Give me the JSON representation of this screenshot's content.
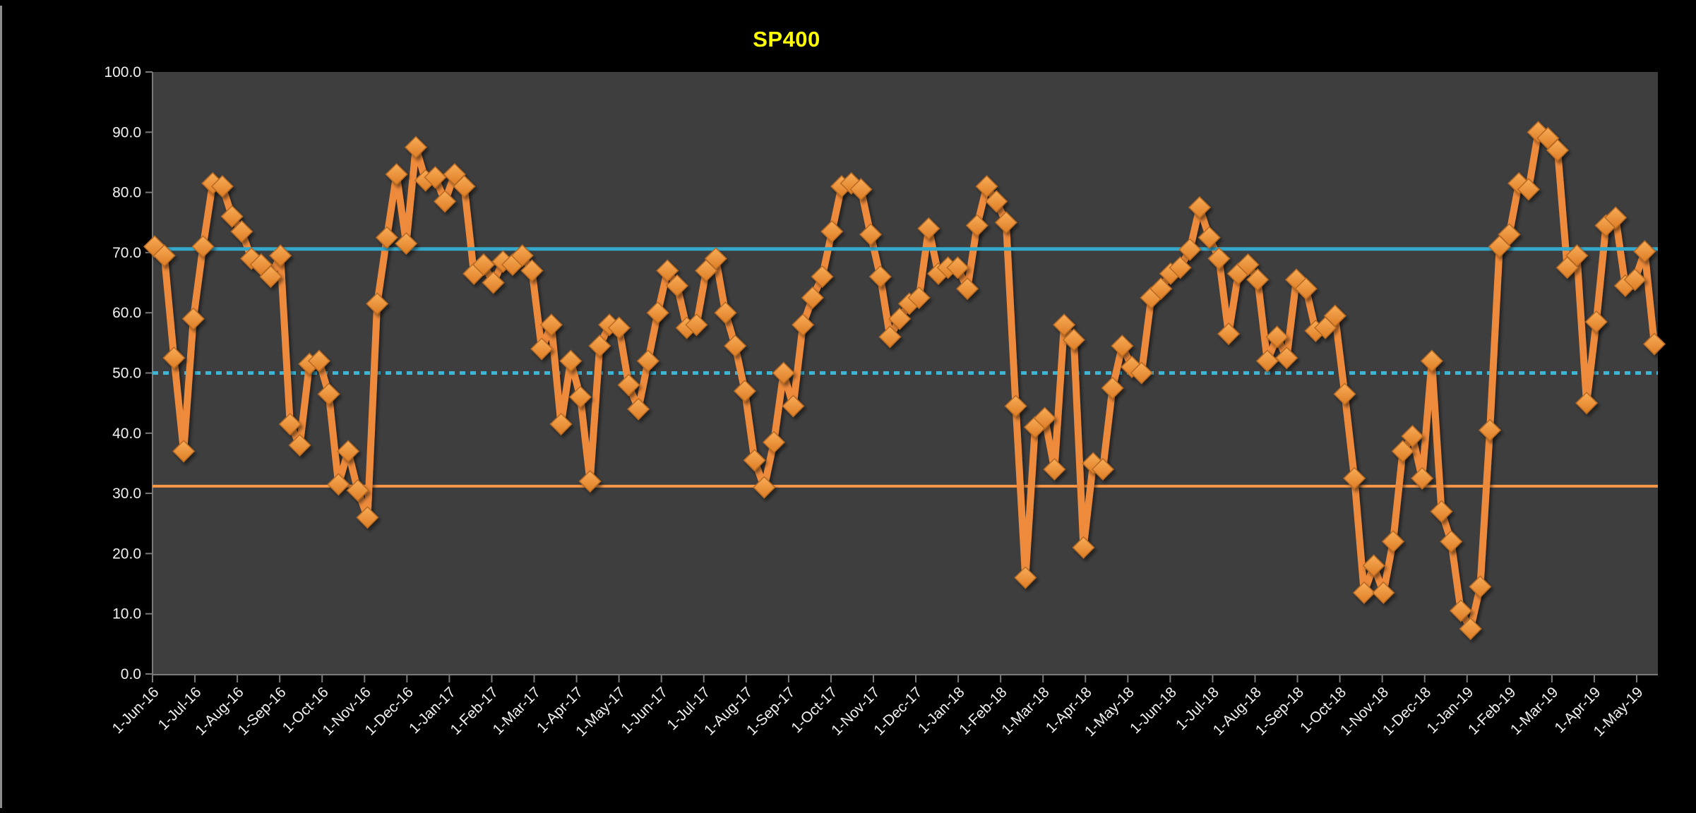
{
  "title": "SP400",
  "chart_data": {
    "type": "line",
    "title": "SP400",
    "title_color": "#FFFF00",
    "ylim": [
      0,
      100
    ],
    "y_tick_step": 10,
    "grid": false,
    "legend": "none",
    "plot_bg": "#3E3E3E",
    "outer_bg": "#000000",
    "axis_color": "#7a7a7a",
    "label_color": "#F2F2F2",
    "x_tick_labels": [
      "1-Jun-16",
      "1-Jul-16",
      "1-Aug-16",
      "1-Sep-16",
      "1-Oct-16",
      "1-Nov-16",
      "1-Dec-16",
      "1-Jan-17",
      "1-Feb-17",
      "1-Mar-17",
      "1-Apr-17",
      "1-May-17",
      "1-Jun-17",
      "1-Jul-17",
      "1-Aug-17",
      "1-Sep-17",
      "1-Oct-17",
      "1-Nov-17",
      "1-Dec-17",
      "1-Jan-18",
      "1-Feb-18",
      "1-Mar-18",
      "1-Apr-18",
      "1-May-18",
      "1-Jun-18",
      "1-Jul-18",
      "1-Aug-18",
      "1-Sep-18",
      "1-Oct-18",
      "1-Nov-18",
      "1-Dec-18",
      "1-Jan-19",
      "1-Feb-19",
      "1-Mar-19",
      "1-Apr-19",
      "1-May-19"
    ],
    "reference_lines": [
      {
        "name": "upper-threshold",
        "value": 70.6,
        "style": "solid",
        "color": "#35A9CB",
        "width": 5
      },
      {
        "name": "mid-threshold",
        "value": 50.0,
        "style": "dotted",
        "color": "#3FB5D4",
        "width": 5
      },
      {
        "name": "lower-threshold",
        "value": 31.2,
        "style": "solid",
        "color": "#F79646",
        "width": 4
      }
    ],
    "series": [
      {
        "name": "SP400 weekly % (diamond markers)",
        "color": "#EE8A3B",
        "marker": "diamond",
        "marker_fill_top": "#F9AC58",
        "marker_fill_bottom": "#DD7D25",
        "marker_stroke": "#B96A22",
        "values": [
          71,
          69.5,
          52.5,
          37,
          59,
          71,
          81.5,
          81,
          76,
          73.5,
          69,
          68,
          66,
          69.5,
          41.5,
          38,
          51.5,
          52,
          46.5,
          31.5,
          37,
          30.5,
          26,
          61.5,
          72.5,
          83,
          71.5,
          87.5,
          82,
          82.5,
          78.5,
          83,
          81,
          66.5,
          68,
          65,
          68.5,
          68,
          69.5,
          67,
          54,
          58,
          41.5,
          52,
          46,
          32,
          54.5,
          58,
          57.5,
          48,
          44,
          52,
          60,
          67,
          64.5,
          57.5,
          58,
          67,
          69,
          60,
          54.5,
          47,
          35.5,
          31,
          38.5,
          50,
          44.5,
          58,
          62.5,
          66,
          73.5,
          81,
          81.5,
          80.5,
          73,
          66,
          56,
          59,
          61.5,
          62.5,
          74,
          66.5,
          67.5,
          67.5,
          64,
          74.5,
          81,
          78.5,
          75,
          44.5,
          16,
          41,
          42.5,
          34,
          58,
          55.5,
          21,
          35,
          34,
          47.5,
          54.5,
          51,
          50,
          62.5,
          64,
          66.5,
          67.5,
          70.5,
          77.5,
          72.5,
          69,
          56.5,
          66.5,
          68,
          65.5,
          52,
          56,
          52.5,
          65.5,
          64,
          57,
          57.5,
          59.5,
          46.5,
          32.5,
          13.5,
          18,
          13.5,
          22,
          37,
          39.5,
          32.5,
          52,
          27,
          22,
          10.5,
          7.5,
          14.5,
          40.5,
          71,
          73,
          81.5,
          80.5,
          90,
          89,
          87,
          67.5,
          69.5,
          45,
          58.5,
          74.5,
          75.8,
          64.5,
          65.5,
          70.2,
          54.8
        ]
      }
    ]
  }
}
